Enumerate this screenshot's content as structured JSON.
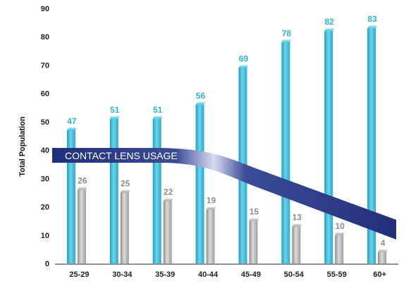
{
  "chart_data": {
    "type": "bar",
    "ylabel": "Total Population",
    "ylim": [
      0,
      90
    ],
    "yticks": [
      0,
      10,
      20,
      30,
      40,
      50,
      60,
      70,
      80,
      90
    ],
    "grid": false,
    "categories": [
      "25-29",
      "30-34",
      "35-39",
      "40-44",
      "45-49",
      "50-54",
      "55-59",
      "60+"
    ],
    "series": [
      {
        "values": [
          47,
          51,
          51,
          56,
          69,
          78,
          82,
          83
        ],
        "color": "#3cb9d6"
      },
      {
        "values": [
          26,
          25,
          22,
          19,
          15,
          13,
          10,
          4
        ],
        "color": "#b3b3b3"
      }
    ],
    "annotation": {
      "text": "CONTACT LENS USAGE",
      "color": "#1f2f7a"
    }
  }
}
